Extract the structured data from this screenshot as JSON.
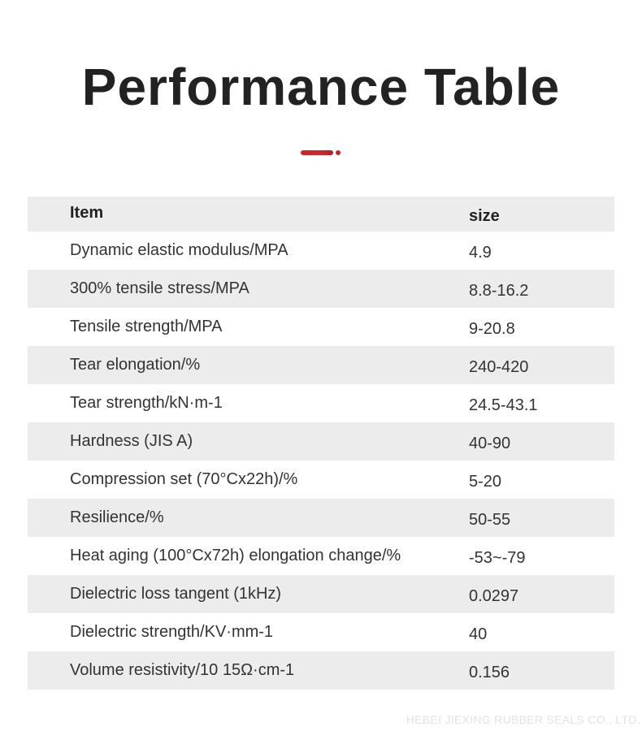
{
  "title": "Performance Table",
  "table": {
    "header": {
      "item": "Item",
      "size": "size"
    },
    "rows": [
      {
        "item": "Dynamic elastic modulus/MPA",
        "size": "4.9"
      },
      {
        "item": "300% tensile stress/MPA",
        "size": "8.8-16.2"
      },
      {
        "item": "Tensile strength/MPA",
        "size": "9-20.8"
      },
      {
        "item": "Tear elongation/%",
        "size": "240-420"
      },
      {
        "item": "Tear strength/kN·m-1",
        "size": "24.5-43.1"
      },
      {
        "item": "Hardness (JIS A)",
        "size": "40-90"
      },
      {
        "item": "Compression set (70°Cx22h)/%",
        "size": "5-20"
      },
      {
        "item": "Resilience/%",
        "size": "50-55"
      },
      {
        "item": "Heat aging (100°Cx72h) elongation change/%",
        "size": "-53~-79"
      },
      {
        "item": "Dielectric loss tangent (1kHz)",
        "size": "0.0297"
      },
      {
        "item": "Dielectric strength/KV·mm-1",
        "size": "40"
      },
      {
        "item": "Volume resistivity/10 15Ω·cm-1",
        "size": "0.156"
      }
    ]
  },
  "footer": "HEBEI JIEXING RUBBER SEALS CO., LTD.",
  "colors": {
    "accent": "#c8252a",
    "row_shade": "#ececec",
    "text": "#333333"
  }
}
